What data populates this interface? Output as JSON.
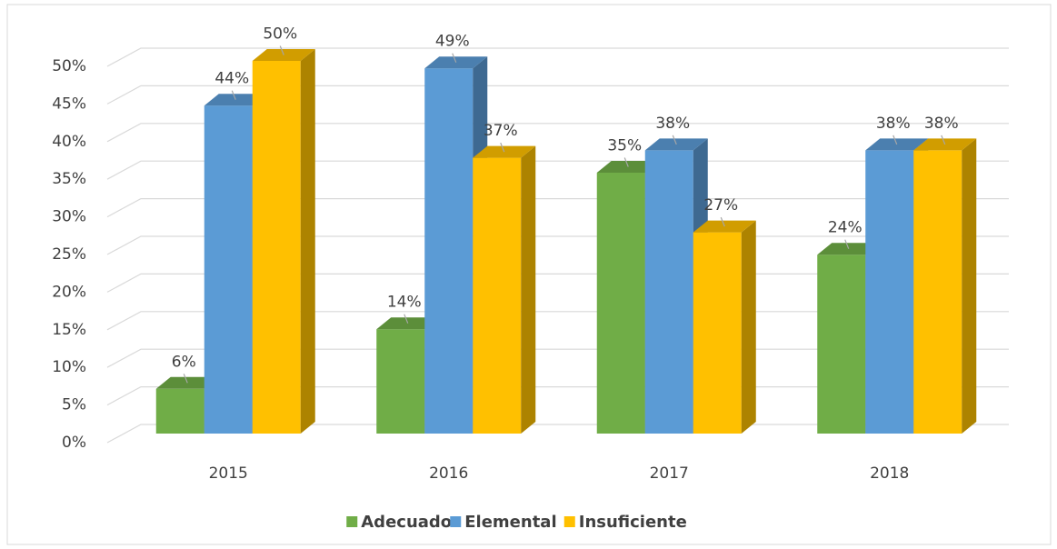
{
  "chart_data": {
    "type": "bar3d",
    "categories": [
      "2015",
      "2016",
      "2017",
      "2018"
    ],
    "series": [
      {
        "name": "Adecuado",
        "color": "#70ad47",
        "values": [
          6,
          14,
          35,
          24
        ],
        "value_labels": [
          "6%",
          "14%",
          "35%",
          "24%"
        ]
      },
      {
        "name": "Elemental",
        "color": "#5b9bd5",
        "values": [
          44,
          49,
          38,
          38
        ],
        "value_labels": [
          "44%",
          "49%",
          "38%",
          "38%"
        ]
      },
      {
        "name": "Insuficiente",
        "color": "#ffc000",
        "values": [
          50,
          37,
          27,
          38
        ],
        "value_labels": [
          "50%",
          "37%",
          "27%",
          "38%"
        ]
      }
    ],
    "ylim": [
      0,
      50
    ],
    "yticks": [
      {
        "value": 0,
        "label": "0%"
      },
      {
        "value": 5,
        "label": "5%"
      },
      {
        "value": 10,
        "label": "10%"
      },
      {
        "value": 15,
        "label": "15%"
      },
      {
        "value": 20,
        "label": "20%"
      },
      {
        "value": 25,
        "label": "25%"
      },
      {
        "value": 30,
        "label": "30%"
      },
      {
        "value": 35,
        "label": "35%"
      },
      {
        "value": 40,
        "label": "40%"
      },
      {
        "value": 45,
        "label": "45%"
      },
      {
        "value": 50,
        "label": "50%"
      }
    ],
    "grid": true,
    "legend": "bottom"
  }
}
